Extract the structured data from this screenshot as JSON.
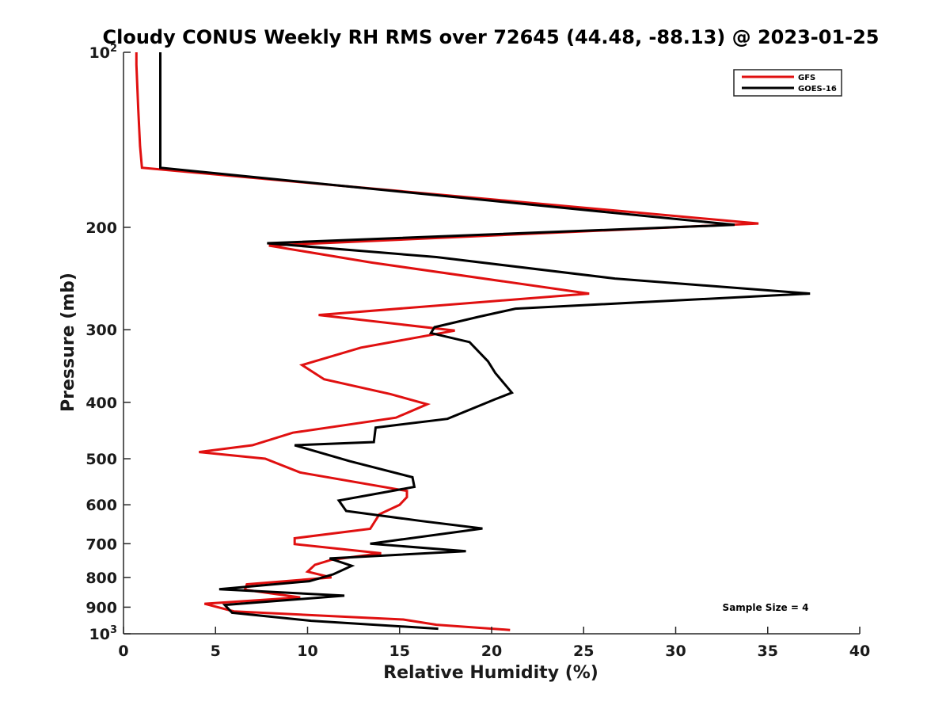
{
  "chart_data": {
    "type": "line",
    "title": "Cloudy CONUS Weekly RH RMS over 72645 (44.48, -88.13) @ 2023-01-25",
    "xlabel": "Relative Humidity (%)",
    "ylabel": "Pressure (mb)",
    "xlim": [
      0,
      40
    ],
    "ylim": [
      100,
      1000
    ],
    "y_scale": "log",
    "y_reversed": true,
    "x_ticks": [
      0,
      5,
      10,
      15,
      20,
      25,
      30,
      35,
      40
    ],
    "x_tick_labels": [
      "0",
      "5",
      "10",
      "15",
      "20",
      "25",
      "30",
      "35",
      "40"
    ],
    "y_ticks": [
      {
        "value": 100,
        "base": "10",
        "exp": "2"
      },
      {
        "value": 200,
        "base": "200",
        "exp": ""
      },
      {
        "value": 300,
        "base": "300",
        "exp": ""
      },
      {
        "value": 400,
        "base": "400",
        "exp": ""
      },
      {
        "value": 500,
        "base": "500",
        "exp": ""
      },
      {
        "value": 600,
        "base": "600",
        "exp": ""
      },
      {
        "value": 700,
        "base": "700",
        "exp": ""
      },
      {
        "value": 800,
        "base": "800",
        "exp": ""
      },
      {
        "value": 900,
        "base": "900",
        "exp": ""
      },
      {
        "value": 1000,
        "base": "10",
        "exp": "3"
      }
    ],
    "grid": false,
    "legend_position": "top-right",
    "annotation": "Sample Size = 4",
    "series": [
      {
        "name": "GFS",
        "color": "#e01010",
        "points": [
          [
            0.7,
            100
          ],
          [
            0.7,
            105
          ],
          [
            0.8,
            125
          ],
          [
            0.9,
            145
          ],
          [
            1.0,
            158
          ],
          [
            34.5,
            197
          ],
          [
            7.9,
            215
          ],
          [
            13.5,
            230
          ],
          [
            25.3,
            260
          ],
          [
            10.6,
            283
          ],
          [
            18.0,
            301
          ],
          [
            12.9,
            322
          ],
          [
            9.7,
            345
          ],
          [
            10.9,
            365
          ],
          [
            14.5,
            387
          ],
          [
            16.5,
            403
          ],
          [
            14.8,
            425
          ],
          [
            9.2,
            451
          ],
          [
            7.0,
            474
          ],
          [
            4.1,
            487
          ],
          [
            7.7,
            500
          ],
          [
            9.6,
            528
          ],
          [
            15.4,
            568
          ],
          [
            15.4,
            582
          ],
          [
            15.0,
            600
          ],
          [
            13.9,
            623
          ],
          [
            13.4,
            660
          ],
          [
            9.3,
            685
          ],
          [
            9.3,
            701
          ],
          [
            14.0,
            727
          ],
          [
            11.3,
            746
          ],
          [
            10.4,
            761
          ],
          [
            10.0,
            782
          ],
          [
            11.3,
            800
          ],
          [
            6.7,
            822
          ],
          [
            6.6,
            840
          ],
          [
            9.6,
            866
          ],
          [
            4.4,
            888
          ],
          [
            6.0,
            915
          ],
          [
            15.2,
            945
          ],
          [
            17.0,
            965
          ],
          [
            21.0,
            985
          ]
        ]
      },
      {
        "name": "GOES-16",
        "color": "#000000",
        "points": [
          [
            2.0,
            100
          ],
          [
            2.0,
            105
          ],
          [
            2.0,
            125
          ],
          [
            2.0,
            145
          ],
          [
            2.0,
            158
          ],
          [
            33.2,
            198
          ],
          [
            7.8,
            213
          ],
          [
            17.0,
            225
          ],
          [
            26.7,
            245
          ],
          [
            37.3,
            260
          ],
          [
            21.3,
            276
          ],
          [
            19.3,
            285
          ],
          [
            16.9,
            297
          ],
          [
            16.7,
            304
          ],
          [
            18.8,
            315
          ],
          [
            19.8,
            340
          ],
          [
            20.2,
            356
          ],
          [
            21.1,
            385
          ],
          [
            20.2,
            395
          ],
          [
            17.6,
            427
          ],
          [
            13.7,
            442
          ],
          [
            13.6,
            468
          ],
          [
            9.3,
            474
          ],
          [
            12.3,
            505
          ],
          [
            15.7,
            538
          ],
          [
            15.8,
            559
          ],
          [
            11.7,
            590
          ],
          [
            12.1,
            615
          ],
          [
            16.2,
            640
          ],
          [
            19.5,
            659
          ],
          [
            13.4,
            700
          ],
          [
            18.6,
            721
          ],
          [
            11.2,
            742
          ],
          [
            12.4,
            764
          ],
          [
            11.4,
            790
          ],
          [
            10.1,
            812
          ],
          [
            5.2,
            838
          ],
          [
            12.0,
            860
          ],
          [
            5.5,
            892
          ],
          [
            5.9,
            920
          ],
          [
            10.2,
            950
          ],
          [
            17.1,
            980
          ]
        ]
      }
    ]
  }
}
